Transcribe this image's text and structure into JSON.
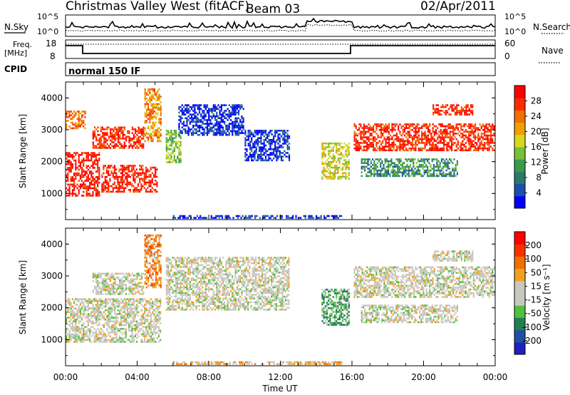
{
  "header": {
    "station": "Christmas Valley West (fitACF)",
    "beam": "Beam 03",
    "date": "02/Apr/2011"
  },
  "summary_panel": {
    "nsky_label": "N.Sky",
    "nsky_ticks": [
      "10^5",
      "10^0"
    ],
    "nsearch_label": "N.Search",
    "nsearch_ticks": [
      "10^5",
      "10^0"
    ],
    "freq_label_1": "Freq.",
    "freq_label_2": "[MHz]",
    "freq_ticks": [
      "18",
      "8"
    ],
    "nave_label": "Nave",
    "nave_ticks": [
      "60",
      "0"
    ],
    "cpid_label": "CPID",
    "cpid_value": "normal 150 IF"
  },
  "chart_data": [
    {
      "type": "heatmap",
      "name": "power",
      "ylabel": "Slant Range [km]",
      "y_ticks": [
        "4000",
        "3000",
        "2000",
        "1000"
      ],
      "colorbar_label": "Power [dB]",
      "colorbar_ticks": [
        "28",
        "24",
        "20",
        "16",
        "12",
        "8",
        "4"
      ],
      "colorbar_colors": [
        "#0000ff",
        "#1a4fb0",
        "#2c7a6a",
        "#3a9c4a",
        "#78c038",
        "#d8d820",
        "#f0a000",
        "#f07000",
        "#ff2a00",
        "#ff0000"
      ],
      "x_range_hours": [
        0,
        24
      ],
      "y_range_km": [
        180,
        4500
      ],
      "bands": [
        {
          "t0": 0.0,
          "t1": 2.0,
          "r0": 900,
          "r1": 2300,
          "level": 0.92
        },
        {
          "t0": 2.0,
          "t1": 5.2,
          "r0": 1000,
          "r1": 1900,
          "level": 0.9
        },
        {
          "t0": 0.0,
          "t1": 1.2,
          "r0": 3000,
          "r1": 3600,
          "level": 0.75
        },
        {
          "t0": 1.5,
          "t1": 4.4,
          "r0": 2400,
          "r1": 3100,
          "level": 0.88
        },
        {
          "t0": 4.4,
          "t1": 5.4,
          "r0": 2600,
          "r1": 4300,
          "level": 0.7
        },
        {
          "t0": 5.6,
          "t1": 6.5,
          "r0": 1900,
          "r1": 3000,
          "level": 0.45
        },
        {
          "t0": 6.3,
          "t1": 10.0,
          "r0": 2800,
          "r1": 3800,
          "level": 0.08
        },
        {
          "t0": 10.0,
          "t1": 12.6,
          "r0": 2000,
          "r1": 3000,
          "level": 0.1
        },
        {
          "t0": 14.3,
          "t1": 15.9,
          "r0": 1400,
          "r1": 2600,
          "level": 0.55
        },
        {
          "t0": 16.1,
          "t1": 24.0,
          "r0": 2300,
          "r1": 3200,
          "level": 0.88
        },
        {
          "t0": 16.5,
          "t1": 22.0,
          "r0": 1500,
          "r1": 2100,
          "level": 0.3
        },
        {
          "t0": 20.5,
          "t1": 22.8,
          "r0": 3400,
          "r1": 3800,
          "level": 0.9
        },
        {
          "t0": 6.0,
          "t1": 15.5,
          "r0": 180,
          "r1": 320,
          "level": 0.1
        }
      ]
    },
    {
      "type": "heatmap",
      "name": "velocity",
      "ylabel": "Slant Range [km]",
      "y_ticks": [
        "4000",
        "3000",
        "2000",
        "1000"
      ],
      "xlabel": "Time UT",
      "x_ticks": [
        "00:00",
        "04:00",
        "08:00",
        "12:00",
        "16:00",
        "20:00",
        "00:00"
      ],
      "colorbar_label": "Velocity [m s⁻¹]",
      "colorbar_ticks": [
        "200",
        "100",
        "50",
        "15",
        "-15",
        "-50",
        "-100",
        "-200"
      ],
      "colorbar_colors": [
        "#2020c0",
        "#2050a0",
        "#208050",
        "#50c040",
        "#c8c8c0",
        "#c8c8c0",
        "#f0a020",
        "#f07000",
        "#ff3000",
        "#ff0000"
      ],
      "x_range_hours": [
        0,
        24
      ],
      "y_range_km": [
        180,
        4500
      ],
      "bands": [
        {
          "t0": 0.0,
          "t1": 5.4,
          "r0": 900,
          "r1": 2300,
          "level": 0.5
        },
        {
          "t0": 1.5,
          "t1": 4.4,
          "r0": 2400,
          "r1": 3100,
          "level": 0.5
        },
        {
          "t0": 4.4,
          "t1": 5.4,
          "r0": 2600,
          "r1": 4300,
          "level": 0.7
        },
        {
          "t0": 5.6,
          "t1": 12.6,
          "r0": 1900,
          "r1": 3600,
          "level": 0.5
        },
        {
          "t0": 14.3,
          "t1": 15.9,
          "r0": 1400,
          "r1": 2600,
          "level": 0.33
        },
        {
          "t0": 16.1,
          "t1": 24.0,
          "r0": 2300,
          "r1": 3300,
          "level": 0.5
        },
        {
          "t0": 16.5,
          "t1": 22.0,
          "r0": 1500,
          "r1": 2100,
          "level": 0.5
        },
        {
          "t0": 20.5,
          "t1": 22.8,
          "r0": 3400,
          "r1": 3800,
          "level": 0.5
        },
        {
          "t0": 6.0,
          "t1": 15.5,
          "r0": 180,
          "r1": 320,
          "level": 0.6
        }
      ]
    }
  ]
}
